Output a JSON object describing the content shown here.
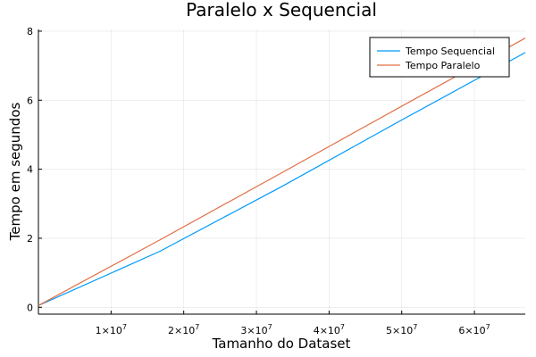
{
  "chart_data": {
    "type": "line",
    "title": "Paralelo x Sequencial",
    "xlabel": "Tamanho do Dataset",
    "ylabel": "Tempo em segundos",
    "xlim": [
      0,
      67000000
    ],
    "ylim": [
      -0.2,
      8.05
    ],
    "grid": true,
    "legend_position": "top-right",
    "xticks": [
      {
        "value": 10000000,
        "mant": "1×10",
        "exp": "7"
      },
      {
        "value": 20000000,
        "mant": "2×10",
        "exp": "7"
      },
      {
        "value": 30000000,
        "mant": "3×10",
        "exp": "7"
      },
      {
        "value": 40000000,
        "mant": "4×10",
        "exp": "7"
      },
      {
        "value": 50000000,
        "mant": "5×10",
        "exp": "7"
      },
      {
        "value": 60000000,
        "mant": "6×10",
        "exp": "7"
      }
    ],
    "yticks": [
      {
        "value": 0,
        "label": "0"
      },
      {
        "value": 2,
        "label": "2"
      },
      {
        "value": 4,
        "label": "4"
      },
      {
        "value": 6,
        "label": "6"
      },
      {
        "value": 8,
        "label": "8"
      }
    ],
    "series": [
      {
        "name": "Tempo Sequencial",
        "color": "#009af9",
        "x": [
          0,
          16700000,
          33500000,
          50200000,
          67000000
        ],
        "y": [
          0.05,
          1.62,
          3.5,
          5.45,
          7.38
        ]
      },
      {
        "name": "Tempo Paralelo",
        "color": "#e26f46",
        "x": [
          0,
          16700000,
          33500000,
          50200000,
          67000000
        ],
        "y": [
          0.05,
          1.95,
          3.9,
          5.85,
          7.8
        ]
      }
    ]
  }
}
